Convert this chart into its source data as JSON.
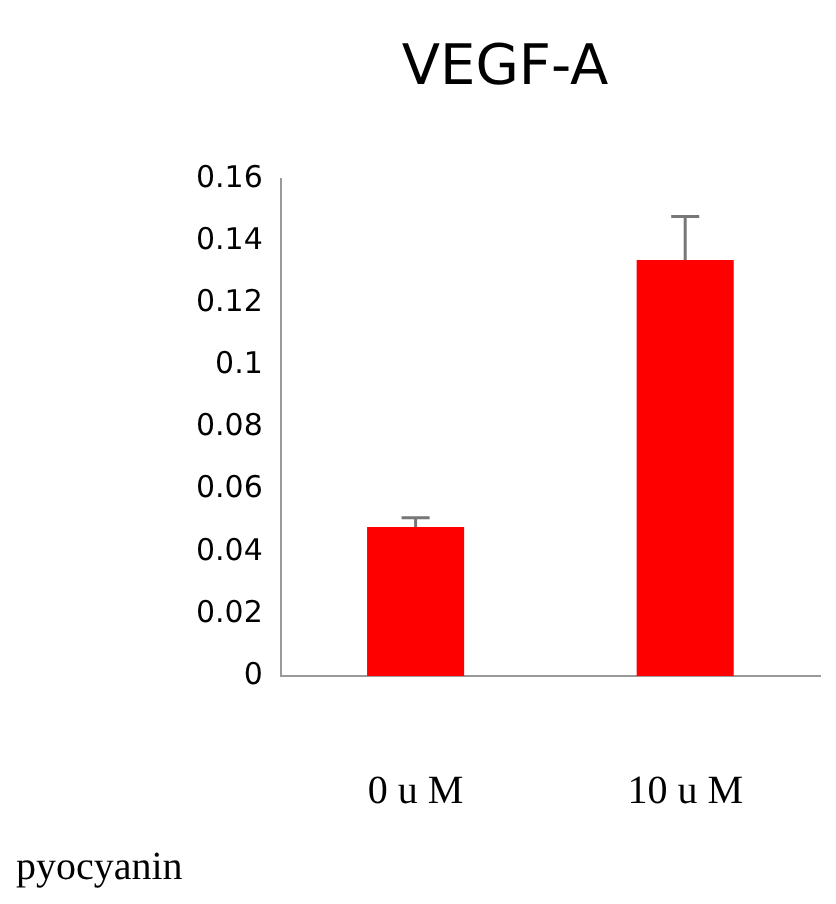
{
  "chart_data": {
    "type": "bar",
    "title": "VEGF-A",
    "xlabel": "pyocyanin",
    "categories": [
      "0 u M",
      "10 u M"
    ],
    "values": [
      0.048,
      0.134
    ],
    "errors": [
      0.003,
      0.014
    ],
    "color": "#ff0000",
    "ylim": [
      0,
      0.16
    ],
    "yticks": [
      0,
      0.02,
      0.04,
      0.06,
      0.08,
      0.1,
      0.12,
      0.14,
      0.16
    ],
    "grid": false,
    "legend": false
  }
}
